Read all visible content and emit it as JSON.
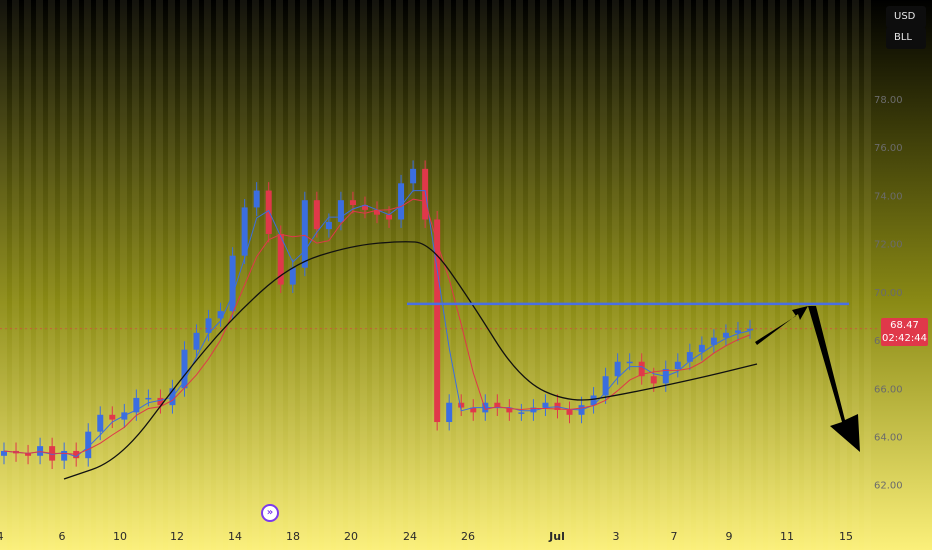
{
  "buttons": {
    "currency": "USD",
    "symbol": "BLL"
  },
  "price_tag": {
    "price": "68.47",
    "countdown": "02:42:44"
  },
  "icons": {
    "replay": "replay-icon"
  },
  "colors": {
    "up": "#3b6ee0",
    "down": "#e0384a",
    "line_blue": "#4a6fe3",
    "curve": "#111111",
    "accent": "#7c3aed"
  },
  "chart_data": {
    "type": "candlestick",
    "y_axis": {
      "ticks": [
        "62.00",
        "64.00",
        "66.00",
        "68.00",
        "70.00",
        "72.00",
        "74.00",
        "76.00",
        "78.00"
      ],
      "ylim": [
        61.2,
        79.2
      ]
    },
    "x_axis": {
      "ticks": [
        "4",
        "6",
        "10",
        "12",
        "14",
        "18",
        "20",
        "24",
        "26",
        "Jul",
        "3",
        "7",
        "9",
        "11",
        "15"
      ]
    },
    "series": [
      {
        "name": "price",
        "values": [
          63.4,
          63.3,
          63.2,
          63.6,
          63.0,
          63.4,
          63.1,
          64.2,
          64.9,
          64.7,
          65.0,
          65.6,
          65.6,
          65.3,
          66.0,
          67.6,
          68.3,
          68.9,
          69.2,
          71.5,
          73.5,
          74.2,
          72.4,
          70.3,
          71.0,
          73.8,
          72.6,
          72.9,
          73.8,
          73.6,
          73.4,
          73.2,
          73.0,
          74.5,
          75.1,
          73.0,
          64.6,
          65.4,
          65.2,
          65.0,
          65.4,
          65.2,
          65.0,
          65.0,
          65.2,
          65.4,
          65.1,
          64.9,
          65.3,
          65.7,
          66.5,
          67.1,
          67.1,
          66.5,
          66.2,
          66.8,
          67.1,
          67.5,
          67.8,
          68.1,
          68.3,
          68.4,
          68.47
        ]
      }
    ],
    "resistance_level": 69.5,
    "annotations": [
      "arrow-up-to-resistance",
      "arrow-down-target"
    ]
  }
}
